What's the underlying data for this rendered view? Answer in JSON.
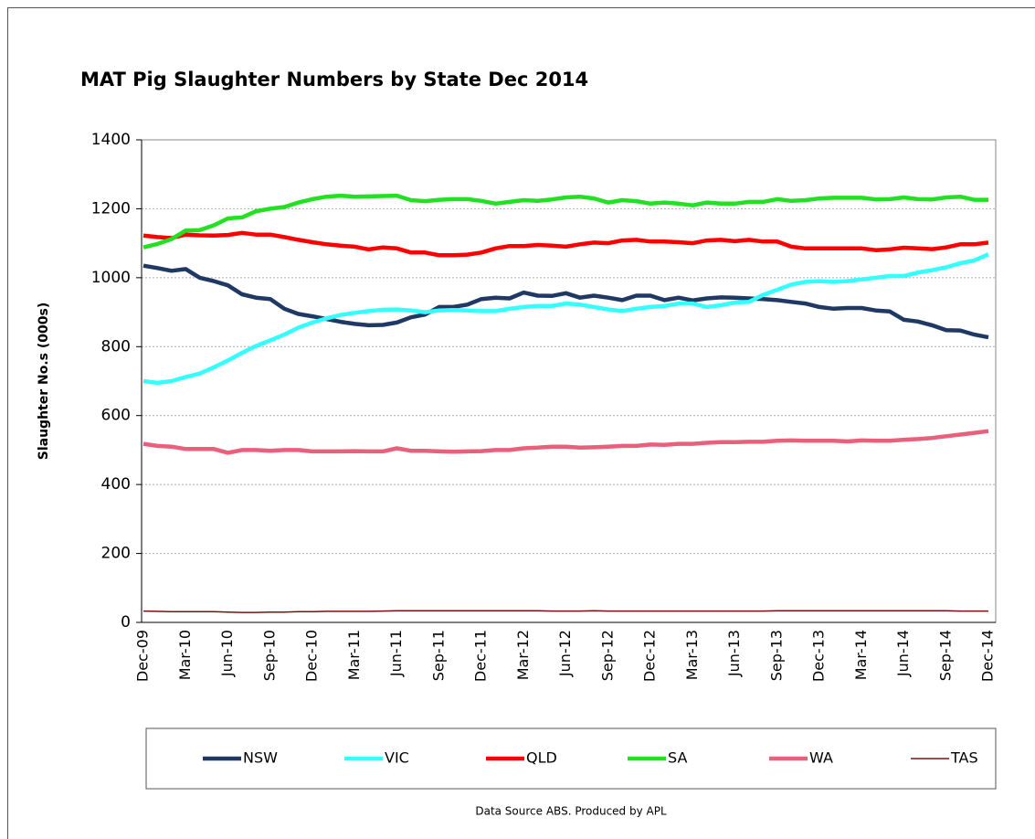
{
  "chart_data": {
    "type": "line",
    "title": "MAT Pig Slaughter Numbers by State Dec 2014",
    "ylabel": "Slaughter No.s (000s)",
    "footnote": "Data Source ABS. Produced by APL",
    "legend": "bottom",
    "grid": true,
    "ylim": [
      0,
      1400
    ],
    "yticks": [
      0,
      200,
      400,
      600,
      800,
      1000,
      1200,
      1400
    ],
    "categories": [
      "Dec-09",
      null,
      null,
      "Mar-10",
      null,
      null,
      "Jun-10",
      null,
      null,
      "Sep-10",
      null,
      null,
      "Dec-10",
      null,
      null,
      "Mar-11",
      null,
      null,
      "Jun-11",
      null,
      null,
      "Sep-11",
      null,
      null,
      "Dec-11",
      null,
      null,
      "Mar-12",
      null,
      null,
      "Jun-12",
      null,
      null,
      "Sep-12",
      null,
      null,
      "Dec-12",
      null,
      null,
      "Mar-13",
      null,
      null,
      "Jun-13",
      null,
      null,
      "Sep-13",
      null,
      null,
      "Dec-13",
      null,
      null,
      "Mar-14",
      null,
      null,
      "Jun-14",
      null,
      null,
      "Sep-14",
      null,
      null,
      "Dec-14"
    ],
    "series": [
      {
        "name": "NSW",
        "color": "#1f3864",
        "width": 4.5,
        "values": [
          1035,
          1028,
          1020,
          1025,
          1000,
          990,
          978,
          952,
          942,
          938,
          910,
          895,
          888,
          880,
          872,
          866,
          862,
          863,
          870,
          885,
          893,
          915,
          915,
          922,
          938,
          942,
          940,
          957,
          948,
          947,
          955,
          942,
          948,
          942,
          935,
          948,
          948,
          935,
          942,
          934,
          940,
          943,
          942,
          940,
          938,
          935,
          930,
          925,
          915,
          910,
          912,
          912,
          905,
          902,
          878,
          873,
          862,
          848,
          847,
          835,
          827
        ]
      },
      {
        "name": "VIC",
        "color": "#33ffff",
        "width": 4.5,
        "values": [
          700,
          695,
          700,
          712,
          722,
          740,
          760,
          782,
          802,
          818,
          835,
          855,
          870,
          882,
          892,
          898,
          903,
          907,
          908,
          905,
          900,
          905,
          906,
          905,
          903,
          903,
          910,
          915,
          918,
          918,
          925,
          922,
          915,
          908,
          903,
          910,
          915,
          918,
          925,
          925,
          915,
          920,
          928,
          930,
          950,
          965,
          980,
          988,
          990,
          988,
          990,
          995,
          1000,
          1005,
          1005,
          1015,
          1022,
          1030,
          1042,
          1050,
          1068
        ]
      },
      {
        "name": "QLD",
        "color": "#ff0000",
        "width": 4.5,
        "values": [
          1122,
          1118,
          1115,
          1125,
          1123,
          1122,
          1124,
          1130,
          1125,
          1125,
          1118,
          1110,
          1103,
          1097,
          1093,
          1090,
          1082,
          1088,
          1085,
          1073,
          1073,
          1065,
          1065,
          1067,
          1073,
          1085,
          1092,
          1092,
          1095,
          1093,
          1090,
          1097,
          1102,
          1100,
          1108,
          1110,
          1105,
          1105,
          1103,
          1100,
          1108,
          1110,
          1106,
          1110,
          1105,
          1105,
          1090,
          1085,
          1085,
          1085,
          1085,
          1085,
          1080,
          1082,
          1087,
          1085,
          1083,
          1088,
          1097,
          1097,
          1102
        ]
      },
      {
        "name": "SA",
        "color": "#22e022",
        "width": 4.5,
        "values": [
          1088,
          1098,
          1112,
          1137,
          1138,
          1152,
          1172,
          1175,
          1193,
          1200,
          1205,
          1218,
          1228,
          1235,
          1238,
          1235,
          1236,
          1237,
          1238,
          1225,
          1222,
          1226,
          1228,
          1228,
          1223,
          1215,
          1220,
          1225,
          1223,
          1227,
          1233,
          1235,
          1230,
          1218,
          1225,
          1222,
          1215,
          1218,
          1215,
          1210,
          1218,
          1215,
          1215,
          1220,
          1220,
          1228,
          1223,
          1225,
          1230,
          1232,
          1232,
          1232,
          1227,
          1228,
          1233,
          1228,
          1227,
          1233,
          1235,
          1226,
          1226
        ]
      },
      {
        "name": "WA",
        "color": "#e8607c",
        "width": 4.5,
        "values": [
          518,
          512,
          510,
          503,
          503,
          503,
          492,
          500,
          500,
          498,
          500,
          500,
          496,
          496,
          496,
          497,
          496,
          496,
          505,
          498,
          498,
          496,
          495,
          496,
          497,
          500,
          500,
          505,
          507,
          510,
          510,
          507,
          508,
          510,
          512,
          512,
          516,
          515,
          518,
          518,
          521,
          523,
          523,
          524,
          524,
          527,
          528,
          527,
          527,
          527,
          525,
          528,
          527,
          527,
          530,
          532,
          535,
          540,
          545,
          550,
          555
        ]
      },
      {
        "name": "TAS",
        "color": "#7b1010",
        "width": 1.5,
        "values": [
          33,
          32,
          31,
          31,
          31,
          31,
          30,
          29,
          29,
          30,
          30,
          31,
          31,
          32,
          32,
          32,
          32,
          33,
          34,
          34,
          34,
          34,
          34,
          34,
          34,
          34,
          34,
          34,
          34,
          33,
          33,
          33,
          34,
          33,
          33,
          33,
          33,
          33,
          33,
          33,
          33,
          33,
          33,
          33,
          33,
          34,
          34,
          34,
          34,
          34,
          34,
          34,
          34,
          34,
          34,
          34,
          34,
          34,
          33,
          33,
          33
        ]
      }
    ]
  }
}
